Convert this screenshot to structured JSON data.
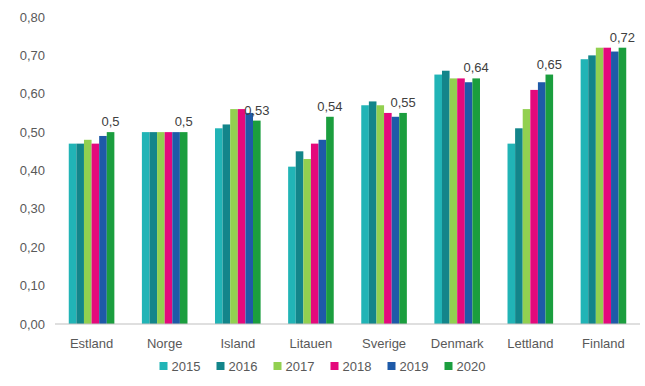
{
  "chart_data": {
    "type": "bar",
    "categories": [
      "Estland",
      "Norge",
      "Island",
      "Litauen",
      "Sverige",
      "Denmark",
      "Lettland",
      "Finland"
    ],
    "series": [
      {
        "name": "2015",
        "color": "#21b4b6",
        "values": [
          0.47,
          0.5,
          0.51,
          0.41,
          0.57,
          0.65,
          0.47,
          0.69
        ]
      },
      {
        "name": "2016",
        "color": "#13858a",
        "values": [
          0.47,
          0.5,
          0.52,
          0.45,
          0.58,
          0.66,
          0.51,
          0.7
        ]
      },
      {
        "name": "2017",
        "color": "#92d050",
        "values": [
          0.48,
          0.5,
          0.56,
          0.43,
          0.57,
          0.64,
          0.56,
          0.72
        ]
      },
      {
        "name": "2018",
        "color": "#e4097c",
        "values": [
          0.47,
          0.5,
          0.56,
          0.47,
          0.55,
          0.64,
          0.61,
          0.72
        ]
      },
      {
        "name": "2019",
        "color": "#1e5aa8",
        "values": [
          0.49,
          0.5,
          0.55,
          0.48,
          0.54,
          0.63,
          0.63,
          0.71
        ]
      },
      {
        "name": "2020",
        "color": "#1b9e3e",
        "values": [
          0.5,
          0.5,
          0.53,
          0.54,
          0.55,
          0.64,
          0.65,
          0.72
        ],
        "data_labels": true,
        "value_labels": [
          "0,5",
          "0,5",
          "0,53",
          "0,54",
          "0,55",
          "0,64",
          "0,65",
          "0,72"
        ]
      }
    ],
    "ylim": [
      0,
      0.8
    ],
    "yticks": [
      {
        "value": 0,
        "label": "0,00"
      },
      {
        "value": 0.1,
        "label": "0,10"
      },
      {
        "value": 0.2,
        "label": "0,20"
      },
      {
        "value": 0.3,
        "label": "0,30"
      },
      {
        "value": 0.4,
        "label": "0,40"
      },
      {
        "value": 0.5,
        "label": "0,50"
      },
      {
        "value": 0.6,
        "label": "0,60"
      },
      {
        "value": 0.7,
        "label": "0,70"
      },
      {
        "value": 0.8,
        "label": "0,80"
      }
    ],
    "grid": false,
    "legend": "bottom"
  }
}
